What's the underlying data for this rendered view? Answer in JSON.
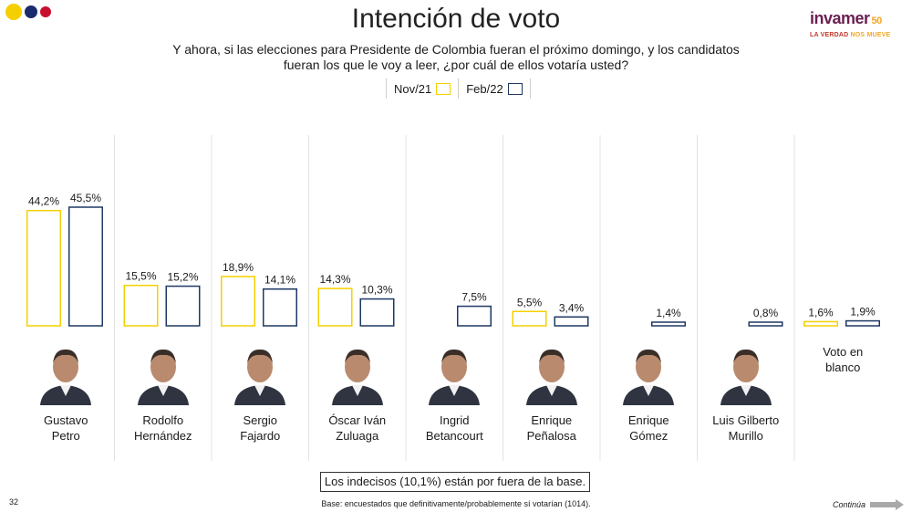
{
  "brand_dots": [
    "#f5d000",
    "#1a2b6d",
    "#c8102e"
  ],
  "header": {
    "title": "Intención de voto",
    "subtitle_line1": "Y ahora, si las elecciones para Presidente de Colombia fueran el próximo domingo, y los candidatos",
    "subtitle_line2": "fueran los que le voy a leer, ¿por cuál de ellos votaría usted?"
  },
  "logo": {
    "name": "invamer",
    "badge": "50",
    "tagline1": "LA VERDAD",
    "tagline2": "NOS MUEVE"
  },
  "legend": {
    "nov": {
      "label": "Nov/21",
      "color": "#f5d000"
    },
    "feb": {
      "label": "Feb/22",
      "color": "#1f3864"
    }
  },
  "chart_data": {
    "type": "bar",
    "title": "Intención de voto",
    "categories": [
      "Gustavo Petro",
      "Rodolfo Hernández",
      "Sergio Fajardo",
      "Óscar Iván Zuluaga",
      "Ingrid Betancourt",
      "Enrique Peñalosa",
      "Enrique Gómez",
      "Luis Gilberto Murillo",
      "Voto en blanco"
    ],
    "series": [
      {
        "name": "Nov/21",
        "color": "#f5d000",
        "values": [
          44.2,
          15.5,
          18.9,
          14.3,
          null,
          5.5,
          null,
          null,
          1.6
        ],
        "labels": [
          "44,2%",
          "15,5%",
          "18,9%",
          "14,3%",
          "",
          "5,5%",
          "",
          "",
          "1,6%"
        ]
      },
      {
        "name": "Feb/22",
        "color": "#1f3864",
        "values": [
          45.5,
          15.2,
          14.1,
          10.3,
          7.5,
          3.4,
          1.4,
          0.8,
          1.9
        ],
        "labels": [
          "45,5%",
          "15,2%",
          "14,1%",
          "10,3%",
          "7,5%",
          "3,4%",
          "1,4%",
          "0,8%",
          "1,9%"
        ]
      }
    ],
    "ylim": [
      0,
      45.5
    ],
    "grid": false,
    "legend_position": "top-center"
  },
  "candidates": [
    {
      "line1": "Gustavo",
      "line2": "Petro",
      "photo": "gustavo-petro-photo"
    },
    {
      "line1": "Rodolfo",
      "line2": "Hernández",
      "photo": "rodolfo-hernandez-photo"
    },
    {
      "line1": "Sergio",
      "line2": "Fajardo",
      "photo": "sergio-fajardo-photo"
    },
    {
      "line1": "Óscar Iván",
      "line2": "Zuluaga",
      "photo": "oscar-ivan-zuluaga-photo"
    },
    {
      "line1": "Ingrid",
      "line2": "Betancourt",
      "photo": "ingrid-betancourt-photo"
    },
    {
      "line1": "Enrique",
      "line2": "Peñalosa",
      "photo": "enrique-penalosa-photo"
    },
    {
      "line1": "Enrique",
      "line2": "Gómez",
      "photo": "enrique-gomez-photo"
    },
    {
      "line1": "Luis Gilberto",
      "line2": "Murillo",
      "photo": "luis-gilberto-murillo-photo"
    },
    {
      "line1": "Voto en",
      "line2": "blanco",
      "photo": ""
    }
  ],
  "footer": {
    "note": "Los indecisos (10,1%) están por fuera de la base.",
    "page_number": "32",
    "base": "Base: encuestados que definitivamente/probablemente sí votarían (1014).",
    "continua": "Continúa"
  }
}
